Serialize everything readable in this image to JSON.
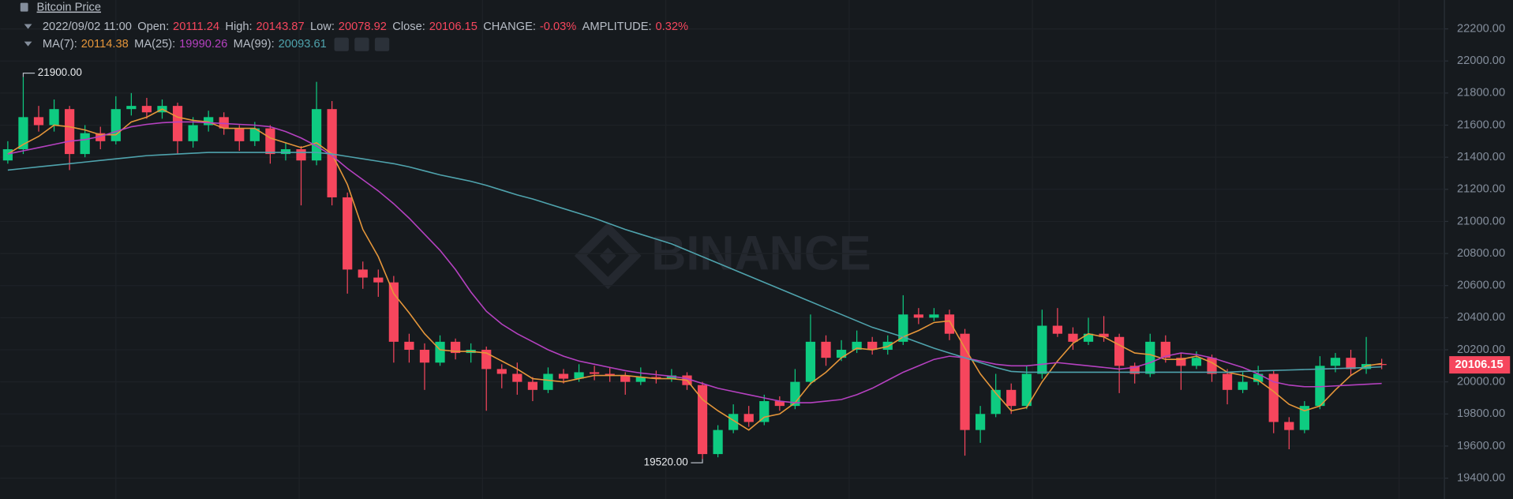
{
  "header": {
    "title": "Bitcoin Price",
    "datetime": "2022/09/02 11:00",
    "open_label": "Open:",
    "high_label": "High:",
    "low_label": "Low:",
    "close_label": "Close:",
    "change_label": "CHANGE:",
    "change": "-0.03%",
    "amplitude_label": "AMPLITUDE:",
    "amplitude": "0.32%"
  },
  "watermark": "BINANCE",
  "chart_data": {
    "type": "candlestick",
    "open": [
      21380,
      21450,
      21650,
      21600,
      21700,
      21420,
      21550,
      21500,
      21700,
      21720,
      21680,
      21720,
      21500,
      21600,
      21650,
      21580,
      21500,
      21580,
      21420,
      21450,
      21380,
      21700,
      21150,
      20700,
      20650,
      20620,
      20250,
      20200,
      20120,
      20250,
      20180,
      20200,
      20080,
      20050,
      20000,
      19950,
      20050,
      20020,
      20060,
      20050,
      20040,
      20000,
      20030,
      20020,
      20040,
      19980,
      19550,
      19700,
      19800,
      19750,
      19880,
      19850,
      20000,
      20250,
      20150,
      20200,
      20250,
      20200,
      20250,
      20420,
      20400,
      20420,
      20300,
      19700,
      19800,
      19950,
      19850,
      20050,
      20350,
      20300,
      20250,
      20300,
      20280,
      20100,
      20050,
      20250,
      20150,
      20100,
      20150,
      20050,
      19950,
      20000,
      20050,
      19750,
      19700,
      19850,
      20100,
      20150,
      20080,
      20111.24
    ],
    "high": [
      21500,
      21900,
      21720,
      21760,
      21720,
      21600,
      21590,
      21780,
      21800,
      21770,
      21760,
      21740,
      21650,
      21690,
      21680,
      21600,
      21620,
      21600,
      21490,
      21470,
      21870,
      21750,
      21180,
      20750,
      20700,
      20660,
      20300,
      20240,
      20290,
      20270,
      20240,
      20220,
      20110,
      20120,
      20030,
      20090,
      20080,
      20110,
      20100,
      20090,
      20060,
      20090,
      20070,
      20080,
      20060,
      20000,
      19730,
      19860,
      19850,
      19920,
      19910,
      20080,
      20420,
      20290,
      20260,
      20320,
      20280,
      20290,
      20540,
      20460,
      20460,
      20450,
      20330,
      19850,
      20050,
      19990,
      20100,
      20450,
      20460,
      20340,
      20400,
      20410,
      20300,
      20120,
      20300,
      20290,
      20180,
      20190,
      20170,
      20080,
      20060,
      20100,
      20070,
      19780,
      19880,
      20160,
      20180,
      20200,
      20280,
      20143.87
    ],
    "low": [
      21360,
      21420,
      21560,
      21560,
      21320,
      21400,
      21450,
      21480,
      21660,
      21640,
      21640,
      21420,
      21460,
      21560,
      21540,
      21440,
      21470,
      21360,
      21380,
      21100,
      21350,
      21100,
      20550,
      20580,
      20530,
      20120,
      20120,
      19950,
      20100,
      20140,
      20120,
      19820,
      19960,
      19920,
      19880,
      19930,
      19990,
      20000,
      20010,
      20000,
      19920,
      19980,
      19990,
      20000,
      19950,
      19520,
      19530,
      19680,
      19720,
      19730,
      19820,
      19830,
      19980,
      20100,
      20130,
      20180,
      20170,
      20170,
      20230,
      20360,
      20380,
      20260,
      19540,
      19620,
      19780,
      19800,
      19830,
      20020,
      20280,
      20200,
      20230,
      20250,
      19930,
      19990,
      20030,
      20120,
      19950,
      20080,
      20000,
      19860,
      19930,
      19980,
      19680,
      19580,
      19680,
      19830,
      20060,
      20040,
      20050,
      20078.92
    ],
    "close": [
      21450,
      21650,
      21600,
      21700,
      21420,
      21550,
      21500,
      21700,
      21720,
      21680,
      21720,
      21500,
      21600,
      21650,
      21580,
      21500,
      21580,
      21420,
      21450,
      21380,
      21700,
      21150,
      20700,
      20650,
      20620,
      20250,
      20200,
      20120,
      20250,
      20180,
      20200,
      20080,
      20050,
      20000,
      19950,
      20050,
      20020,
      20060,
      20050,
      20040,
      20000,
      20030,
      20020,
      20040,
      19980,
      19550,
      19700,
      19800,
      19750,
      19880,
      19850,
      20000,
      20250,
      20150,
      20200,
      20250,
      20200,
      20250,
      20420,
      20400,
      20420,
      20300,
      19700,
      19800,
      19950,
      19850,
      20050,
      20350,
      20300,
      20250,
      20300,
      20280,
      20100,
      20050,
      20250,
      20150,
      20100,
      20150,
      20050,
      19950,
      20000,
      20050,
      19750,
      19700,
      19850,
      20100,
      20150,
      20080,
      20111.24,
      20106.15
    ],
    "up_color": "#0ecb81",
    "down_color": "#f6465d",
    "series": [
      {
        "name": "MA(7):",
        "color": "#e5963a",
        "values": [
          21420,
          21480,
          21530,
          21600,
          21590,
          21570,
          21540,
          21540,
          21620,
          21650,
          21700,
          21650,
          21630,
          21620,
          21580,
          21580,
          21580,
          21520,
          21490,
          21460,
          21490,
          21420,
          21230,
          20950,
          20780,
          20550,
          20430,
          20300,
          20200,
          20190,
          20190,
          20180,
          20130,
          20080,
          20020,
          20010,
          20000,
          20020,
          20040,
          20040,
          20040,
          20030,
          20020,
          20020,
          20010,
          19890,
          19820,
          19760,
          19700,
          19780,
          19800,
          19870,
          19990,
          20060,
          20150,
          20210,
          20200,
          20220,
          20280,
          20320,
          20370,
          20380,
          20210,
          20050,
          19930,
          19820,
          19840,
          20000,
          20130,
          20240,
          20300,
          20280,
          20230,
          20180,
          20170,
          20140,
          20140,
          20160,
          20120,
          20060,
          20040,
          20010,
          19940,
          19860,
          19820,
          19850,
          19950,
          20040,
          20100,
          20114.38
        ]
      },
      {
        "name": "MA(25):",
        "color": "#b541c0",
        "values": [
          21420,
          21440,
          21460,
          21480,
          21500,
          21510,
          21530,
          21560,
          21590,
          21605,
          21615,
          21620,
          21620,
          21615,
          21610,
          21605,
          21600,
          21590,
          21560,
          21520,
          21470,
          21410,
          21330,
          21260,
          21190,
          21110,
          21020,
          20920,
          20820,
          20700,
          20560,
          20440,
          20360,
          20300,
          20250,
          20200,
          20160,
          20130,
          20110,
          20090,
          20070,
          20055,
          20045,
          20035,
          20020,
          19990,
          19960,
          19940,
          19920,
          19900,
          19880,
          19870,
          19870,
          19880,
          19890,
          19920,
          19960,
          20010,
          20060,
          20100,
          20140,
          20160,
          20150,
          20130,
          20110,
          20100,
          20100,
          20110,
          20120,
          20110,
          20100,
          20090,
          20080,
          20090,
          20120,
          20160,
          20180,
          20170,
          20150,
          20120,
          20090,
          20050,
          20000,
          19980,
          19970,
          19970,
          19975,
          19980,
          19985,
          19990.26
        ]
      },
      {
        "name": "MA(99):",
        "color": "#4fa3ad",
        "values": [
          21320,
          21330,
          21340,
          21350,
          21360,
          21370,
          21380,
          21390,
          21400,
          21410,
          21415,
          21420,
          21425,
          21430,
          21430,
          21430,
          21430,
          21430,
          21430,
          21430,
          21430,
          21420,
          21405,
          21390,
          21375,
          21360,
          21340,
          21315,
          21290,
          21270,
          21250,
          21225,
          21195,
          21165,
          21140,
          21110,
          21080,
          21050,
          21020,
          20985,
          20950,
          20920,
          20890,
          20860,
          20820,
          20780,
          20740,
          20700,
          20660,
          20620,
          20580,
          20540,
          20500,
          20460,
          20420,
          20380,
          20340,
          20310,
          20280,
          20245,
          20210,
          20180,
          20150,
          20120,
          20090,
          20065,
          20060,
          20060,
          20060,
          20060,
          20060,
          20060,
          20060,
          20060,
          20060,
          20060,
          20060,
          20060,
          20060,
          20060,
          20065,
          20068,
          20071,
          20074,
          20077,
          20080,
          20083,
          20086,
          20089,
          20093.61
        ]
      }
    ],
    "ylim": [
      19270,
      22380
    ],
    "yticks": [
      {
        "value": 19400,
        "label": "19400.00"
      },
      {
        "value": 19600,
        "label": "19600.00"
      },
      {
        "value": 19800,
        "label": "19800.00"
      },
      {
        "value": 20000,
        "label": "20000.00"
      },
      {
        "value": 20200,
        "label": "20200.00"
      },
      {
        "value": 20400,
        "label": "20400.00"
      },
      {
        "value": 20600,
        "label": "20600.00"
      },
      {
        "value": 20800,
        "label": "20800.00"
      },
      {
        "value": 21000,
        "label": "21000.00"
      },
      {
        "value": 21200,
        "label": "21200.00"
      },
      {
        "value": 21400,
        "label": "21400.00"
      },
      {
        "value": 21600,
        "label": "21600.00"
      },
      {
        "value": 21800,
        "label": "21800.00"
      },
      {
        "value": 22000,
        "label": "22000.00"
      },
      {
        "value": 22200,
        "label": "22200.00"
      }
    ],
    "grid": true,
    "max_label": "21900.00",
    "min_label": "19520.00"
  }
}
